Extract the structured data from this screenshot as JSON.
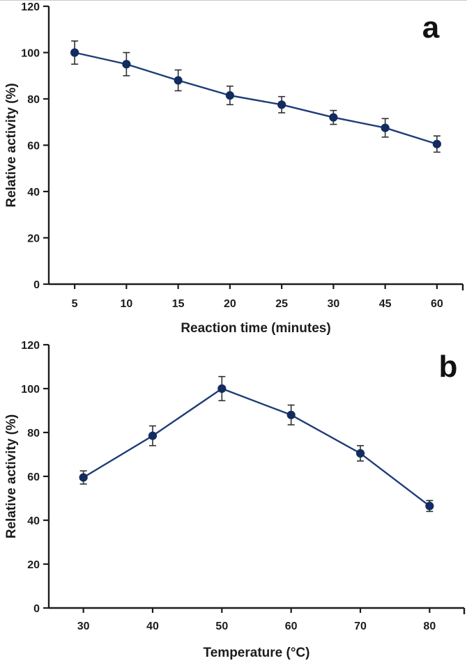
{
  "page": {
    "description": "Two-panel scientific line figure with error bars",
    "background": "#ffffff"
  },
  "style": {
    "line_color": "#1e3c77",
    "marker_color": "#132c60",
    "error_bar_color": "#2f2f2f",
    "axis_color": "#1c1c1c",
    "text_color": "#1c1c1c"
  },
  "chart_data": [
    {
      "type": "line",
      "panel_label": "a",
      "title": "",
      "xlabel": "Reaction time (minutes)",
      "ylabel": "Relative activity (%)",
      "categories": [
        "5",
        "10",
        "15",
        "20",
        "25",
        "30",
        "45",
        "60"
      ],
      "series": [
        {
          "name": "Relative activity",
          "values": [
            100,
            95,
            88,
            81.5,
            77.5,
            72,
            67.5,
            60.5
          ],
          "errors": [
            5,
            5,
            4.5,
            4,
            3.5,
            3,
            4,
            3.5
          ]
        }
      ],
      "ylim": [
        0,
        120
      ],
      "yticks": [
        0,
        20,
        40,
        60,
        80,
        100,
        120
      ],
      "grid": false,
      "legend": "none",
      "marker": "circle",
      "error_bars": "vertical"
    },
    {
      "type": "line",
      "panel_label": "b",
      "title": "",
      "xlabel": "Temperature (°C)",
      "ylabel": "Relative activity (%)",
      "categories": [
        "30",
        "40",
        "50",
        "60",
        "70",
        "80"
      ],
      "series": [
        {
          "name": "Relative activity",
          "values": [
            59.5,
            78.5,
            100,
            88,
            70.5,
            46.5
          ],
          "errors": [
            3,
            4.5,
            5.5,
            4.5,
            3.5,
            2.5
          ]
        }
      ],
      "ylim": [
        0,
        120
      ],
      "yticks": [
        0,
        20,
        40,
        60,
        80,
        100,
        120
      ],
      "grid": false,
      "legend": "none",
      "marker": "circle",
      "error_bars": "vertical"
    }
  ]
}
